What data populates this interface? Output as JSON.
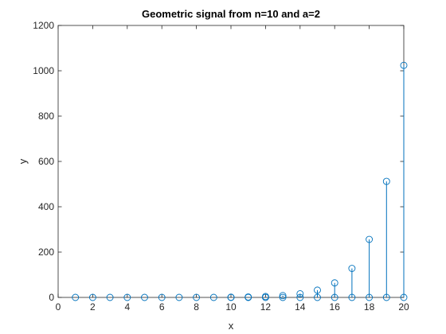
{
  "chart_data": {
    "type": "stem",
    "title": "Geometric signal from n=10 and a=2",
    "xlabel": "x",
    "ylabel": "y",
    "xlim": [
      0,
      20
    ],
    "ylim": [
      0,
      1200
    ],
    "xticks": [
      0,
      2,
      4,
      6,
      8,
      10,
      12,
      14,
      16,
      18,
      20
    ],
    "yticks": [
      0,
      200,
      400,
      600,
      800,
      1000,
      1200
    ],
    "grid": false,
    "box": true,
    "marker": "circle",
    "series": [
      {
        "x": [
          1,
          2,
          3,
          4,
          5,
          6,
          7,
          8,
          9,
          10,
          11,
          12,
          13,
          14,
          15,
          16,
          17,
          18,
          19,
          20
        ],
        "y": [
          0,
          0,
          0,
          0,
          0,
          0,
          0,
          0,
          0,
          0,
          0,
          0,
          0,
          0,
          0,
          0,
          0,
          0,
          0,
          0
        ]
      },
      {
        "x": [
          10,
          11,
          12,
          13,
          14,
          15,
          16,
          17,
          18,
          19,
          20
        ],
        "y": [
          1,
          2,
          4,
          8,
          16,
          32,
          64,
          128,
          256,
          512,
          1024
        ]
      }
    ],
    "colors": {
      "stem": "#0072BD",
      "axis": "#262626"
    }
  }
}
